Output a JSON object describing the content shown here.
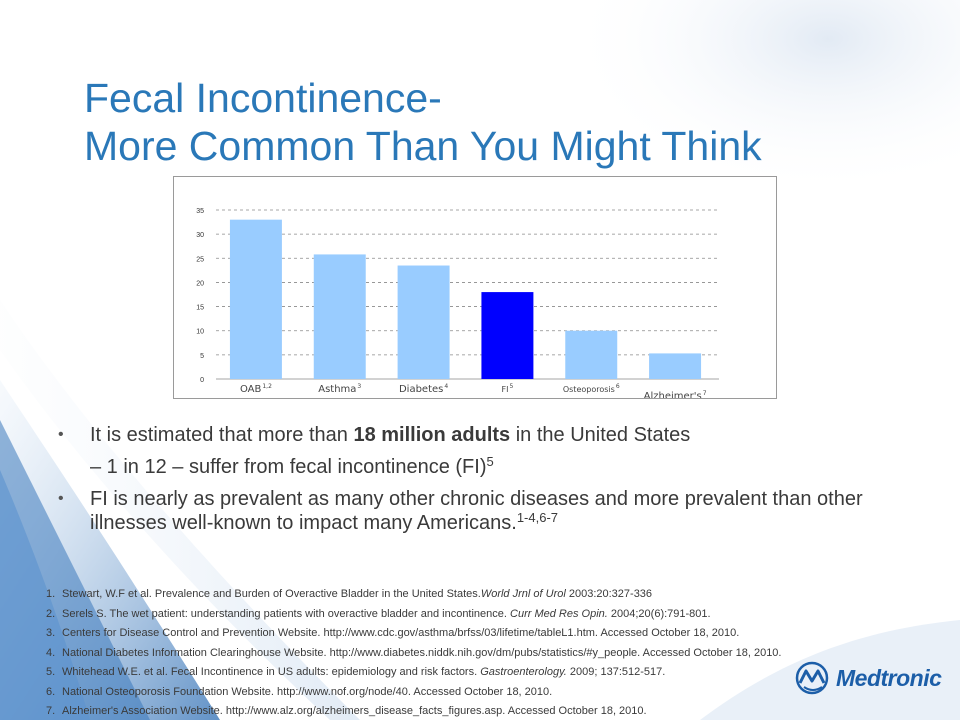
{
  "title": {
    "line1": "Fecal Incontinence-",
    "line2": "More Common Than You Might Think"
  },
  "chart_data": {
    "type": "bar",
    "categories": [
      {
        "name": "OAB",
        "sup": "1,2"
      },
      {
        "name": "Asthma",
        "sup": "3"
      },
      {
        "name": "Diabetes",
        "sup": "4"
      },
      {
        "name": "FI",
        "sup": "5"
      },
      {
        "name": "Osteoporosis",
        "sup": "6"
      },
      {
        "name": "Alzheimer's",
        "sup": "7"
      }
    ],
    "values": [
      33,
      25.8,
      23.5,
      18,
      10,
      5.3
    ],
    "highlight_index": 3,
    "bar_color": "#99ccff",
    "highlight_color": "#0000ff",
    "ylim": [
      0,
      35
    ],
    "yticks": [
      "0",
      "5",
      "10",
      "15",
      "20",
      "25",
      "30",
      "35"
    ],
    "grid": "dashed horizontal",
    "legend": "none"
  },
  "bullets": [
    {
      "pre": "It is estimated that more than ",
      "bold": "18 million adults",
      "post": " in the United States",
      "line2": "– 1 in 12 – suffer from fecal incontinence (FI)",
      "sup": "5"
    },
    {
      "text": "FI is nearly as prevalent as many other chronic diseases and more prevalent than other illnesses well-known to impact many Americans.",
      "sup": "1-4,6-7"
    }
  ],
  "references": [
    {
      "num": "1.",
      "pre": "Stewart, W.F et al.  Prevalence and Burden of Overactive Bladder in the United States.",
      "italic": "World Jrnl of Urol",
      "post": " 2003:20:327-336"
    },
    {
      "num": "2.",
      "pre": "Serels S. The wet patient: understanding patients with overactive bladder and incontinence. ",
      "italic": "Curr Med Res Opin.",
      "post": " 2004;20(6):791-801."
    },
    {
      "num": "3.",
      "pre": "Centers for Disease Control and Prevention Website. http://www.cdc.gov/asthma/brfss/03/lifetime/tableL1.htm. Accessed October 18, 2010.",
      "italic": "",
      "post": ""
    },
    {
      "num": "4.",
      "pre": "National Diabetes Information Clearinghouse Website. http://www.diabetes.niddk.nih.gov/dm/pubs/statistics/#y_people. Accessed October 18, 2010.",
      "italic": "",
      "post": ""
    },
    {
      "num": "5.",
      "pre": "Whitehead W.E. et al. Fecal Incontinence in US adults: epidemiology and risk factors. ",
      "italic": "Gastroenterology.",
      "post": " 2009;  137:512-517."
    },
    {
      "num": "6.",
      "pre": "National Osteoporosis Foundation Website. http://www.nof.org/node/40. Accessed October 18, 2010.",
      "italic": "",
      "post": ""
    },
    {
      "num": "7.",
      "pre": "Alzheimer's Association Website. http://www.alz.org/alzheimers_disease_facts_figures.asp. Accessed October 18, 2010.",
      "italic": "",
      "post": ""
    }
  ],
  "logo": {
    "text": "Medtronic",
    "icon": "medtronic-logo-icon",
    "color": "#1c5ea8"
  },
  "theme": {
    "title_color": "#2a78b8",
    "background_swoosh": "#6f9fd0"
  }
}
